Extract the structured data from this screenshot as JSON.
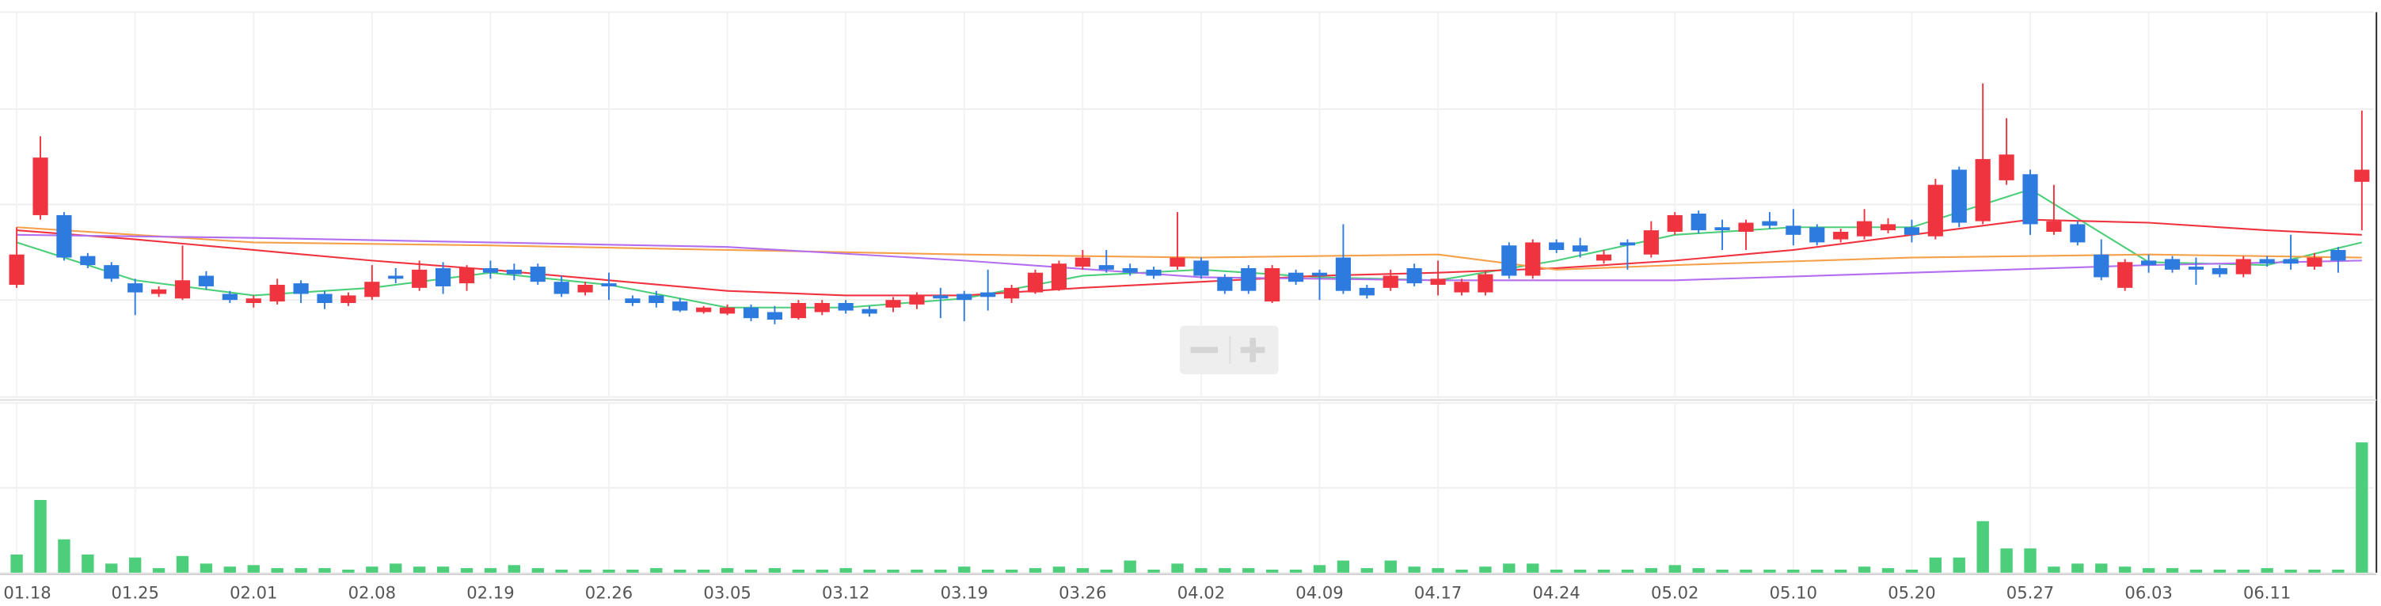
{
  "chart_data": {
    "type": "candlestick",
    "categories": [
      "01.18",
      null,
      null,
      null,
      null,
      "01.25",
      null,
      null,
      null,
      null,
      "02.01",
      null,
      null,
      null,
      null,
      "02.08",
      null,
      null,
      null,
      null,
      "02.19",
      null,
      null,
      null,
      null,
      "02.26",
      null,
      null,
      null,
      null,
      "03.05",
      null,
      null,
      null,
      null,
      "03.12",
      null,
      null,
      null,
      null,
      "03.19",
      null,
      null,
      null,
      null,
      "03.26",
      null,
      null,
      null,
      null,
      "04.02",
      null,
      null,
      null,
      null,
      "04.09",
      null,
      null,
      null,
      null,
      "04.17",
      null,
      null,
      null,
      null,
      "04.24",
      null,
      null,
      null,
      null,
      "05.02",
      null,
      null,
      null,
      null,
      "05.10",
      null,
      null,
      null,
      null,
      "05.20",
      null,
      null,
      null,
      null,
      "05.27",
      null,
      null,
      null,
      null,
      "06.03",
      null,
      null,
      null,
      null,
      "06.11",
      null,
      null,
      null,
      null
    ],
    "open": [
      74,
      120,
      120,
      93,
      87,
      75,
      68,
      65,
      80,
      68,
      62,
      63,
      75,
      68,
      62,
      66,
      80,
      72,
      85,
      75,
      85,
      84,
      86,
      76,
      69,
      75,
      65,
      67,
      63,
      56,
      55,
      59,
      56,
      52,
      56,
      62,
      58,
      59,
      61,
      67,
      68,
      69,
      65,
      69,
      71,
      86,
      87,
      85,
      84,
      86,
      90,
      79,
      85,
      63,
      82,
      82,
      92,
      72,
      72,
      85,
      74,
      69,
      69,
      100,
      80,
      102,
      100,
      90,
      102,
      94,
      109,
      121,
      112,
      109,
      116,
      113,
      112,
      104,
      106,
      110,
      112,
      106,
      150,
      116,
      143,
      147,
      109,
      114,
      94,
      72,
      90,
      91,
      86,
      85,
      81,
      91,
      91,
      86,
      97,
      142
    ],
    "high": [
      112,
      172,
      122,
      95,
      89,
      78,
      73,
      100,
      83,
      70,
      67,
      78,
      77,
      70,
      69,
      87,
      85,
      90,
      89,
      87,
      90,
      88,
      88,
      80,
      76,
      82,
      67,
      70,
      65,
      60,
      61,
      61,
      60,
      64,
      64,
      64,
      60,
      66,
      69,
      72,
      70,
      84,
      74,
      84,
      90,
      97,
      97,
      88,
      86,
      122,
      92,
      81,
      87,
      87,
      84,
      84,
      114,
      74,
      84,
      88,
      90,
      78,
      83,
      102,
      104,
      104,
      105,
      97,
      104,
      116,
      122,
      123,
      117,
      117,
      122,
      124,
      114,
      111,
      124,
      118,
      117,
      144,
      152,
      207,
      184,
      150,
      140,
      116,
      104,
      91,
      94,
      93,
      92,
      87,
      93,
      93,
      107,
      95,
      99,
      189
    ],
    "low": [
      72,
      117,
      90,
      85,
      76,
      54,
      66,
      64,
      71,
      62,
      59,
      61,
      62,
      58,
      60,
      64,
      75,
      70,
      68,
      70,
      78,
      77,
      74,
      66,
      67,
      64,
      60,
      59,
      56,
      55,
      54,
      50,
      48,
      51,
      54,
      55,
      53,
      56,
      58,
      52,
      50,
      57,
      62,
      68,
      70,
      84,
      82,
      80,
      78,
      84,
      78,
      68,
      68,
      62,
      74,
      64,
      68,
      65,
      70,
      73,
      67,
      67,
      67,
      78,
      78,
      95,
      92,
      88,
      84,
      92,
      107,
      108,
      97,
      97,
      111,
      100,
      100,
      102,
      104,
      108,
      102,
      104,
      112,
      114,
      140,
      107,
      107,
      100,
      77,
      70,
      82,
      82,
      74,
      79,
      79,
      86,
      84,
      84,
      82,
      110
    ],
    "close": [
      94,
      158,
      92,
      87,
      78,
      69,
      71,
      77,
      73,
      64,
      65,
      74,
      68,
      62,
      67,
      76,
      78,
      84,
      73,
      85,
      82,
      81,
      76,
      68,
      74,
      73,
      62,
      62,
      57,
      59,
      59,
      52,
      51,
      62,
      62,
      57,
      55,
      64,
      67,
      65,
      64,
      66,
      72,
      82,
      88,
      92,
      84,
      82,
      80,
      92,
      80,
      70,
      70,
      85,
      76,
      80,
      70,
      67,
      80,
      75,
      78,
      76,
      81,
      80,
      102,
      97,
      96,
      94,
      100,
      110,
      120,
      110,
      110,
      115,
      113,
      107,
      102,
      109,
      116,
      114,
      107,
      140,
      115,
      157,
      160,
      114,
      116,
      102,
      79,
      89,
      87,
      84,
      84,
      81,
      91,
      88,
      88,
      92,
      90,
      150
    ],
    "up_color": "#f0343f",
    "down_color": "#2e7be0",
    "ylim": [
      0,
      254
    ],
    "yticks": [
      0,
      64,
      127,
      190,
      254
    ],
    "grid": true,
    "moving_averages": [
      {
        "color": "#4cce7a",
        "x": [
          0,
          5,
          10,
          15,
          20,
          25,
          30,
          35,
          40,
          45,
          50,
          55,
          60,
          65,
          70,
          75,
          80,
          85,
          90,
          95,
          99
        ],
        "values": [
          102,
          77,
          67,
          72,
          82,
          74,
          59,
          59,
          65,
          80,
          84,
          79,
          77,
          90,
          107,
          112,
          112,
          137,
          89,
          87,
          102
        ]
      },
      {
        "color": "#f0343f",
        "x": [
          0,
          5,
          10,
          15,
          20,
          25,
          30,
          35,
          40,
          45,
          50,
          55,
          60,
          65,
          70,
          75,
          80,
          85,
          90,
          95,
          99
        ],
        "values": [
          110,
          104,
          97,
          90,
          84,
          77,
          70,
          67,
          67,
          72,
          76,
          80,
          82,
          85,
          90,
          97,
          107,
          117,
          115,
          110,
          107
        ]
      },
      {
        "color": "#f5a04a",
        "x": [
          0,
          5,
          10,
          20,
          30,
          40,
          50,
          60,
          65,
          70,
          80,
          90,
          99
        ],
        "values": [
          112,
          107,
          102,
          100,
          97,
          94,
          92,
          94,
          84,
          87,
          92,
          94,
          92
        ]
      },
      {
        "color": "#b36ef0",
        "x": [
          0,
          10,
          20,
          30,
          40,
          50,
          60,
          70,
          80,
          90,
          99
        ],
        "values": [
          107,
          105,
          102,
          99,
          90,
          79,
          77,
          77,
          82,
          87,
          90
        ]
      }
    ],
    "volume": {
      "color": "#4cce7a",
      "values": [
        12,
        48,
        22,
        12,
        6,
        10,
        3,
        11,
        6,
        4,
        5,
        3,
        3,
        3,
        2,
        4,
        6,
        4,
        4,
        3,
        3,
        5,
        3,
        2,
        2,
        2,
        2,
        3,
        2,
        2,
        3,
        2,
        3,
        2,
        2,
        3,
        2,
        2,
        2,
        2,
        4,
        2,
        2,
        3,
        4,
        3,
        2,
        8,
        2,
        6,
        3,
        3,
        3,
        2,
        2,
        5,
        8,
        3,
        8,
        4,
        3,
        2,
        4,
        6,
        6,
        2,
        2,
        2,
        2,
        3,
        5,
        3,
        2,
        2,
        2,
        2,
        2,
        2,
        4,
        3,
        2,
        10,
        10,
        34,
        16,
        16,
        4,
        6,
        6,
        4,
        3,
        3,
        2,
        2,
        2,
        3,
        2,
        2,
        2,
        86
      ],
      "ylim": [
        0,
        112
      ],
      "yticks": [
        0,
        56,
        112
      ]
    }
  }
}
